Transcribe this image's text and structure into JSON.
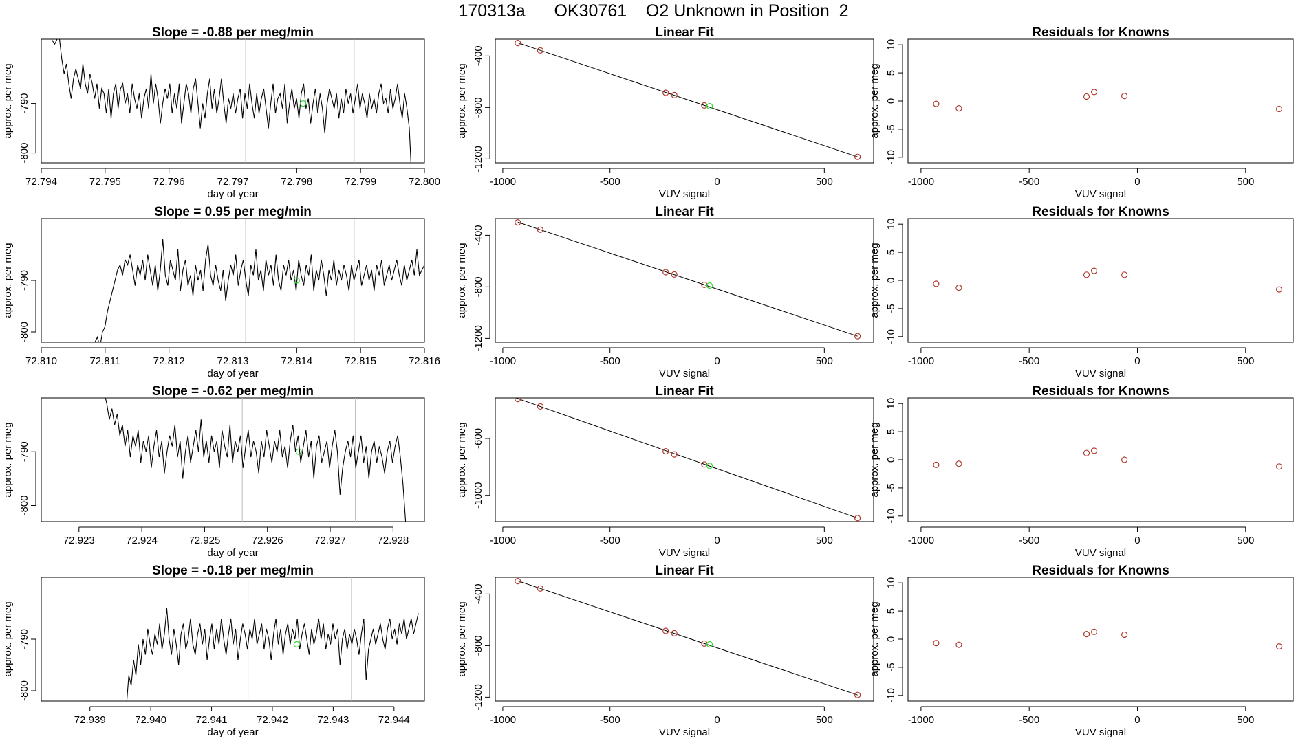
{
  "page": {
    "title": "170313a      OK30761    O2 Unknown in Position  2"
  },
  "colors": {
    "series_line": "#000000",
    "known_points": "#b03a2e",
    "unknown_point": "#33dd33",
    "marker_lines": "#bbbbbb"
  },
  "chart_data": [
    {
      "type": "line",
      "row": 1,
      "col": 1,
      "title": "Slope =  -0.88  per meg/min",
      "xlabel": "day of year",
      "ylabel": "approx. per meg",
      "xlim": [
        72.794,
        72.8
      ],
      "ylim": [
        -802,
        -777
      ],
      "xticks": [
        "72.794",
        "72.795",
        "72.796",
        "72.797",
        "72.798",
        "72.799",
        "72.800"
      ],
      "yticks": [
        "-800",
        "-790"
      ],
      "x_start": 72.7941,
      "x_end": 72.7998,
      "y_values": [
        -777.0,
        -776.0,
        -777.3,
        -778.0,
        -777.0,
        -776.8,
        -781.0,
        -784.0,
        -782.0,
        -786.0,
        -789.0,
        -785.0,
        -783.0,
        -785.0,
        -787.0,
        -782.0,
        -786.0,
        -788.0,
        -784.0,
        -786.0,
        -789.0,
        -786.0,
        -791.0,
        -787.0,
        -788.0,
        -792.0,
        -787.0,
        -793.0,
        -788.0,
        -786.0,
        -791.0,
        -787.0,
        -786.0,
        -790.0,
        -788.0,
        -792.0,
        -786.0,
        -789.0,
        -791.0,
        -788.0,
        -793.0,
        -789.0,
        -787.0,
        -791.0,
        -784.0,
        -790.0,
        -786.0,
        -789.0,
        -794.0,
        -790.0,
        -787.0,
        -789.0,
        -786.0,
        -792.0,
        -788.0,
        -791.0,
        -786.0,
        -794.0,
        -790.0,
        -786.0,
        -788.0,
        -792.0,
        -787.0,
        -785.0,
        -790.0,
        -795.0,
        -790.0,
        -793.0,
        -788.0,
        -785.0,
        -791.0,
        -787.0,
        -792.0,
        -789.0,
        -785.0,
        -790.0,
        -794.0,
        -789.0,
        -791.0,
        -788.0,
        -792.0,
        -789.0,
        -787.0,
        -793.0,
        -788.0,
        -791.0,
        -786.0,
        -790.0,
        -793.0,
        -788.0,
        -792.0,
        -789.0,
        -787.0,
        -791.0,
        -795.0,
        -790.0,
        -786.0,
        -792.0,
        -789.0,
        -788.0,
        -791.0,
        -786.0,
        -794.0,
        -790.0,
        -787.0,
        -791.0,
        -789.0,
        -793.0,
        -788.0,
        -786.0,
        -791.0,
        -789.0,
        -794.0,
        -790.0,
        -787.0,
        -792.0,
        -788.0,
        -791.0,
        -796.0,
        -790.0,
        -787.0,
        -789.0,
        -791.0,
        -788.0,
        -793.0,
        -789.0,
        -792.0,
        -787.0,
        -790.0,
        -788.0,
        -792.0,
        -789.0,
        -786.0,
        -791.0,
        -788.0,
        -790.0,
        -793.0,
        -788.0,
        -791.0,
        -789.0,
        -792.0,
        -788.0,
        -786.0,
        -790.0,
        -789.0,
        -792.0,
        -787.0,
        -791.0,
        -789.0,
        -786.0,
        -790.0,
        -793.0,
        -788.0,
        -791.0,
        -795.0,
        -805.0
      ],
      "vlines": [
        72.7972,
        72.7989
      ],
      "unknown_point": {
        "x": 72.7981,
        "y": -790.0
      }
    },
    {
      "type": "scatter",
      "row": 1,
      "col": 2,
      "title": "Linear Fit",
      "xlabel": "VUV signal",
      "ylabel": "approx. per meg",
      "xlim": [
        -1035,
        730
      ],
      "ylim": [
        -1230,
        -270
      ],
      "xticks": [
        -1000,
        -500,
        0,
        500
      ],
      "yticks": [
        -400,
        -800,
        -1200
      ],
      "known_x": [
        -930,
        -825,
        -240,
        -200,
        -60,
        655
      ],
      "known_y": [
        -300.0,
        -357.0,
        -686.0,
        -704.0,
        -784.0,
        -1183.0
      ],
      "unknown_point": {
        "x": -35,
        "y": -790.0
      },
      "fit_line": {
        "x": [
          -930,
          655
        ],
        "y": [
          -298.0,
          -1183.0
        ]
      }
    },
    {
      "type": "scatter",
      "row": 1,
      "col": 3,
      "title": "Residuals for Knowns",
      "xlabel": "VUV signal",
      "ylabel": "approx. per meg",
      "xlim": [
        -1060,
        720
      ],
      "ylim": [
        -11,
        11
      ],
      "xticks": [
        -1000,
        -500,
        0,
        500
      ],
      "yticks": [
        10,
        5,
        0,
        -5,
        -10
      ],
      "x": [
        -930,
        -825,
        -235,
        -200,
        -60,
        655
      ],
      "y": [
        -0.5,
        -1.3,
        0.8,
        1.6,
        0.9,
        -1.4
      ]
    },
    {
      "type": "line",
      "row": 2,
      "col": 1,
      "title": "Slope =  0.95  per meg/min",
      "xlabel": "day of year",
      "ylabel": "approx. per meg",
      "xlim": [
        72.81,
        72.816
      ],
      "ylim": [
        -802,
        -778
      ],
      "xticks": [
        "72.810",
        "72.811",
        "72.812",
        "72.813",
        "72.814",
        "72.815",
        "72.816"
      ],
      "yticks": [
        "-800",
        "-790"
      ],
      "x_start": 72.8108,
      "x_end": 72.816,
      "y_values": [
        -803.0,
        -802.0,
        -801.0,
        -803.0,
        -800.0,
        -799.0,
        -796.0,
        -794.0,
        -792.0,
        -790.0,
        -788.0,
        -787.0,
        -789.0,
        -786.0,
        -787.0,
        -785.0,
        -788.0,
        -791.0,
        -787.0,
        -789.0,
        -786.0,
        -790.0,
        -785.0,
        -788.0,
        -791.0,
        -787.0,
        -792.0,
        -788.0,
        -782.0,
        -789.0,
        -791.0,
        -786.0,
        -788.0,
        -790.0,
        -784.0,
        -792.0,
        -788.0,
        -786.0,
        -791.0,
        -789.0,
        -793.0,
        -787.0,
        -790.0,
        -788.0,
        -792.0,
        -786.0,
        -783.0,
        -789.0,
        -791.0,
        -787.0,
        -790.0,
        -792.0,
        -788.0,
        -794.0,
        -790.0,
        -787.0,
        -789.0,
        -785.0,
        -791.0,
        -788.0,
        -786.0,
        -790.0,
        -793.0,
        -787.0,
        -789.0,
        -784.0,
        -790.0,
        -788.0,
        -792.0,
        -786.0,
        -789.0,
        -787.0,
        -791.0,
        -785.0,
        -790.0,
        -792.0,
        -787.0,
        -789.0,
        -786.0,
        -790.0,
        -788.0,
        -792.0,
        -786.0,
        -789.0,
        -791.0,
        -787.0,
        -789.0,
        -785.0,
        -792.0,
        -788.0,
        -790.0,
        -786.0,
        -789.0,
        -793.0,
        -788.0,
        -790.0,
        -786.0,
        -791.0,
        -788.0,
        -790.0,
        -787.0,
        -789.0,
        -792.0,
        -787.0,
        -790.0,
        -788.0,
        -786.0,
        -791.0,
        -789.0,
        -787.0,
        -790.0,
        -788.0,
        -792.0,
        -787.0,
        -789.0,
        -786.0,
        -791.0,
        -789.0,
        -787.0,
        -790.0,
        -788.0,
        -786.0,
        -789.0,
        -791.0,
        -787.0,
        -790.0,
        -788.0,
        -786.0,
        -789.0,
        -784.0,
        -789.0,
        -788.0,
        -787.0
      ],
      "vlines": [
        72.8132,
        72.8149
      ],
      "unknown_point": {
        "x": 72.814,
        "y": -790.0
      }
    },
    {
      "type": "scatter",
      "row": 2,
      "col": 2,
      "title": "Linear Fit",
      "xlabel": "VUV signal",
      "ylabel": "approx. per meg",
      "xlim": [
        -1035,
        730
      ],
      "ylim": [
        -1230,
        -270
      ],
      "xticks": [
        -1000,
        -500,
        0,
        500
      ],
      "yticks": [
        -400,
        -800,
        -1200
      ],
      "known_x": [
        -930,
        -825,
        -240,
        -200,
        -60,
        655
      ],
      "known_y": [
        -300.0,
        -357.0,
        -686.0,
        -704.0,
        -784.0,
        -1183.0
      ],
      "unknown_point": {
        "x": -35,
        "y": -790.0
      },
      "fit_line": {
        "x": [
          -930,
          655
        ],
        "y": [
          -298.0,
          -1183.0
        ]
      }
    },
    {
      "type": "scatter",
      "row": 2,
      "col": 3,
      "title": "Residuals for Knowns",
      "xlabel": "VUV signal",
      "ylabel": "approx. per meg",
      "xlim": [
        -1060,
        720
      ],
      "ylim": [
        -11,
        11
      ],
      "xticks": [
        -1000,
        -500,
        0,
        500
      ],
      "yticks": [
        10,
        5,
        0,
        -5,
        -10
      ],
      "x": [
        -930,
        -825,
        -235,
        -200,
        -60,
        655
      ],
      "y": [
        -0.6,
        -1.3,
        1.0,
        1.7,
        1.0,
        -1.6
      ]
    },
    {
      "type": "line",
      "row": 3,
      "col": 1,
      "title": "Slope =  -0.62  per meg/min",
      "xlabel": "day of year",
      "ylabel": "approx. per meg",
      "xlim": [
        72.9224,
        72.9285
      ],
      "ylim": [
        -803,
        -780
      ],
      "xticks": [
        "72.923",
        "72.924",
        "72.925",
        "72.926",
        "72.927",
        "72.928"
      ],
      "yticks": [
        "-800",
        "-790"
      ],
      "x_start": 72.9234,
      "x_end": 72.9282,
      "y_values": [
        -779.0,
        -781.0,
        -784.0,
        -782.0,
        -785.0,
        -783.0,
        -787.0,
        -785.0,
        -789.0,
        -786.0,
        -791.0,
        -787.0,
        -789.0,
        -786.0,
        -792.0,
        -788.0,
        -790.0,
        -787.0,
        -793.0,
        -789.0,
        -786.0,
        -791.0,
        -788.0,
        -794.0,
        -790.0,
        -787.0,
        -789.0,
        -785.0,
        -791.0,
        -788.0,
        -795.0,
        -790.0,
        -787.0,
        -792.0,
        -789.0,
        -786.0,
        -790.0,
        -784.0,
        -791.0,
        -788.0,
        -792.0,
        -787.0,
        -790.0,
        -788.0,
        -793.0,
        -786.0,
        -789.0,
        -791.0,
        -785.0,
        -792.0,
        -788.0,
        -790.0,
        -787.0,
        -793.0,
        -789.0,
        -786.0,
        -791.0,
        -788.0,
        -790.0,
        -794.0,
        -788.0,
        -791.0,
        -786.0,
        -789.0,
        -792.0,
        -788.0,
        -790.0,
        -786.0,
        -791.0,
        -789.0,
        -793.0,
        -788.0,
        -785.0,
        -790.0,
        -787.0,
        -792.0,
        -789.0,
        -786.0,
        -791.0,
        -788.0,
        -795.0,
        -789.0,
        -787.0,
        -792.0,
        -790.0,
        -788.0,
        -793.0,
        -789.0,
        -786.0,
        -790.0,
        -798.0,
        -793.0,
        -790.0,
        -788.0,
        -791.0,
        -787.0,
        -793.0,
        -790.0,
        -787.0,
        -792.0,
        -789.0,
        -795.0,
        -790.0,
        -788.0,
        -792.0,
        -789.0,
        -791.0,
        -794.0,
        -790.0,
        -788.0,
        -792.0,
        -789.0,
        -787.0,
        -791.0,
        -796.0,
        -803.0
      ],
      "vlines": [
        72.9256,
        72.9274
      ],
      "unknown_point": {
        "x": 72.9265,
        "y": -790.0
      }
    },
    {
      "type": "scatter",
      "row": 3,
      "col": 2,
      "title": "Linear Fit",
      "xlabel": "VUV signal",
      "ylabel": "approx. per meg",
      "xlim": [
        -1035,
        730
      ],
      "ylim": [
        -1185,
        -315
      ],
      "xticks": [
        -1000,
        -500,
        0,
        500
      ],
      "yticks": [
        -600,
        -1000
      ],
      "known_x": [
        -930,
        -825,
        -240,
        -200,
        -60,
        655
      ],
      "known_y": [
        -323.0,
        -375.0,
        -690.0,
        -712.0,
        -783.0,
        -1160.0
      ],
      "unknown_point": {
        "x": -35,
        "y": -793.0
      },
      "fit_line": {
        "x": [
          -960,
          655
        ],
        "y": [
          -304.0,
          -1160.0
        ]
      }
    },
    {
      "type": "scatter",
      "row": 3,
      "col": 3,
      "title": "Residuals for Knowns",
      "xlabel": "VUV signal",
      "ylabel": "approx. per meg",
      "xlim": [
        -1060,
        720
      ],
      "ylim": [
        -11,
        11
      ],
      "xticks": [
        -1000,
        -500,
        0,
        500
      ],
      "yticks": [
        10,
        5,
        0,
        -5,
        -10
      ],
      "x": [
        -930,
        -825,
        -235,
        -200,
        -60,
        655
      ],
      "y": [
        -0.9,
        -0.7,
        1.2,
        1.6,
        0.0,
        -1.2
      ]
    },
    {
      "type": "line",
      "row": 4,
      "col": 1,
      "title": "Slope =  -0.18  per meg/min",
      "xlabel": "day of year",
      "ylabel": "approx. per meg",
      "xlim": [
        72.9382,
        72.9445
      ],
      "ylim": [
        -802,
        -778
      ],
      "xticks": [
        "72.939",
        "72.940",
        "72.941",
        "72.942",
        "72.943",
        "72.944"
      ],
      "yticks": [
        "-800",
        "-790"
      ],
      "x_start": 72.9396,
      "x_end": 72.9444,
      "y_values": [
        -803.0,
        -797.0,
        -799.0,
        -794.0,
        -797.0,
        -791.0,
        -795.0,
        -790.0,
        -793.0,
        -788.0,
        -791.0,
        -793.0,
        -789.0,
        -791.0,
        -787.0,
        -792.0,
        -789.0,
        -784.0,
        -790.0,
        -793.0,
        -788.0,
        -791.0,
        -795.0,
        -789.0,
        -787.0,
        -792.0,
        -790.0,
        -786.0,
        -791.0,
        -793.0,
        -789.0,
        -787.0,
        -791.0,
        -788.0,
        -794.0,
        -790.0,
        -787.0,
        -792.0,
        -788.0,
        -791.0,
        -786.0,
        -790.0,
        -793.0,
        -789.0,
        -786.0,
        -791.0,
        -788.0,
        -794.0,
        -790.0,
        -787.0,
        -789.0,
        -792.0,
        -788.0,
        -790.0,
        -786.0,
        -791.0,
        -789.0,
        -787.0,
        -792.0,
        -788.0,
        -790.0,
        -794.0,
        -789.0,
        -786.0,
        -791.0,
        -788.0,
        -793.0,
        -789.0,
        -787.0,
        -791.0,
        -788.0,
        -790.0,
        -786.0,
        -792.0,
        -789.0,
        -787.0,
        -790.0,
        -793.0,
        -788.0,
        -791.0,
        -789.0,
        -786.0,
        -790.0,
        -787.0,
        -792.0,
        -789.0,
        -791.0,
        -787.0,
        -790.0,
        -788.0,
        -795.0,
        -790.0,
        -788.0,
        -792.0,
        -789.0,
        -791.0,
        -788.0,
        -790.0,
        -793.0,
        -789.0,
        -786.0,
        -798.0,
        -792.0,
        -790.0,
        -788.0,
        -791.0,
        -789.0,
        -787.0,
        -790.0,
        -792.0,
        -788.0,
        -786.0,
        -790.0,
        -788.0,
        -791.0,
        -787.0,
        -789.0,
        -786.0,
        -790.0,
        -788.0,
        -786.0,
        -789.0,
        -787.0,
        -785.0
      ],
      "vlines": [
        72.9416,
        72.9433
      ],
      "unknown_point": {
        "x": 72.9424,
        "y": -791.0
      }
    },
    {
      "type": "scatter",
      "row": 4,
      "col": 2,
      "title": "Linear Fit",
      "xlabel": "VUV signal",
      "ylabel": "approx. per meg",
      "xlim": [
        -1035,
        730
      ],
      "ylim": [
        -1230,
        -270
      ],
      "xticks": [
        -1000,
        -500,
        0,
        500
      ],
      "yticks": [
        -400,
        -800,
        -1200
      ],
      "known_x": [
        -930,
        -825,
        -240,
        -200,
        -60,
        655
      ],
      "known_y": [
        -300.0,
        -357.0,
        -686.0,
        -704.0,
        -784.0,
        -1183.0
      ],
      "unknown_point": {
        "x": -35,
        "y": -790.0
      },
      "fit_line": {
        "x": [
          -930,
          655
        ],
        "y": [
          -298.0,
          -1183.0
        ]
      }
    },
    {
      "type": "scatter",
      "row": 4,
      "col": 3,
      "title": "Residuals for Knowns",
      "xlabel": "VUV signal",
      "ylabel": "approx. per meg",
      "xlim": [
        -1060,
        720
      ],
      "ylim": [
        -11,
        11
      ],
      "xticks": [
        -1000,
        -500,
        0,
        500
      ],
      "yticks": [
        10,
        5,
        0,
        -5,
        -10
      ],
      "x": [
        -930,
        -825,
        -235,
        -200,
        -60,
        655
      ],
      "y": [
        -0.7,
        -1.0,
        0.9,
        1.3,
        0.8,
        -1.3
      ]
    }
  ]
}
